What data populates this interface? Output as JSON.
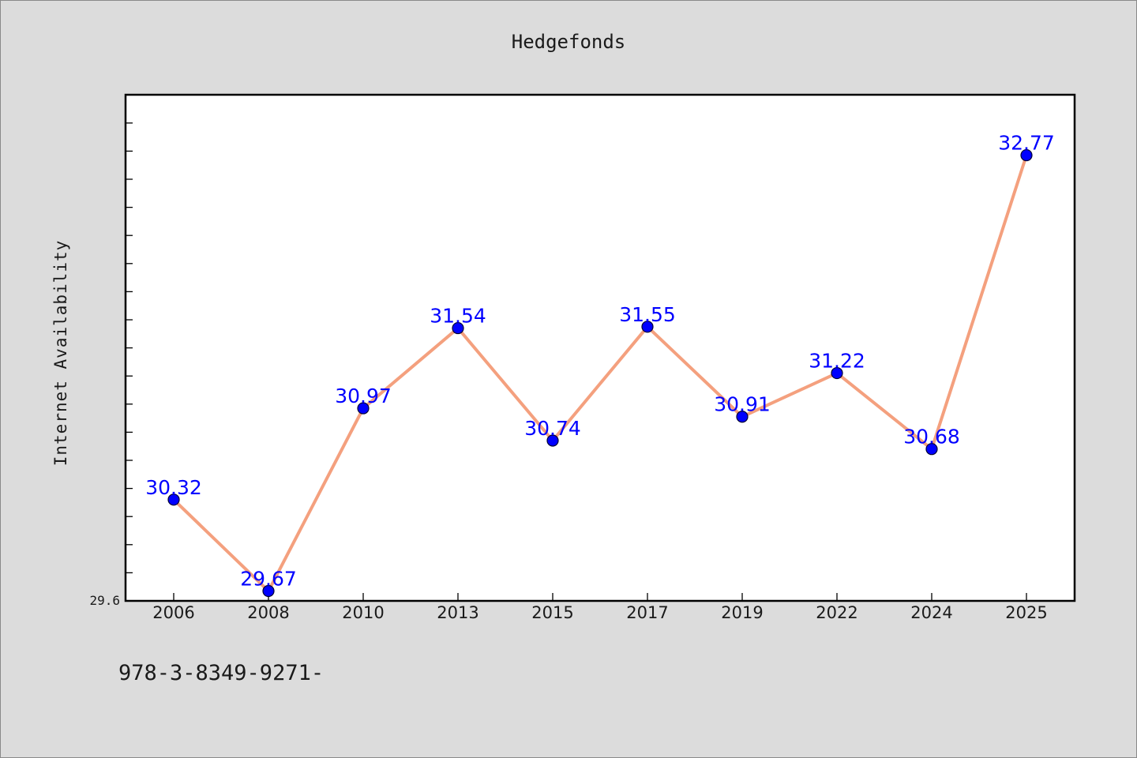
{
  "chart_data": {
    "type": "line",
    "title": "Hedgefonds",
    "xlabel": "",
    "ylabel": "Internet Availability",
    "categories": [
      "2006",
      "2008",
      "2010",
      "2013",
      "2015",
      "2017",
      "2019",
      "2022",
      "2024",
      "2025"
    ],
    "series": [
      {
        "values": [
          30.32,
          29.67,
          30.97,
          31.54,
          30.74,
          31.55,
          30.91,
          31.22,
          30.68,
          32.77
        ],
        "labels": [
          "30.32",
          "29.67",
          "30.97",
          "31.54",
          "30.74",
          "31.55",
          "30.91",
          "31.22",
          "30.68",
          "32.77"
        ]
      }
    ],
    "ylim": [
      29.6,
      33.2
    ],
    "y_tick_label": "29.6",
    "grid": false,
    "legend": "none",
    "colors": {
      "line": "#f4a07e",
      "marker": "#0000ff",
      "data_label": "#0000ff"
    }
  },
  "footer": {
    "isbn": "978-3-8349-9271-"
  }
}
